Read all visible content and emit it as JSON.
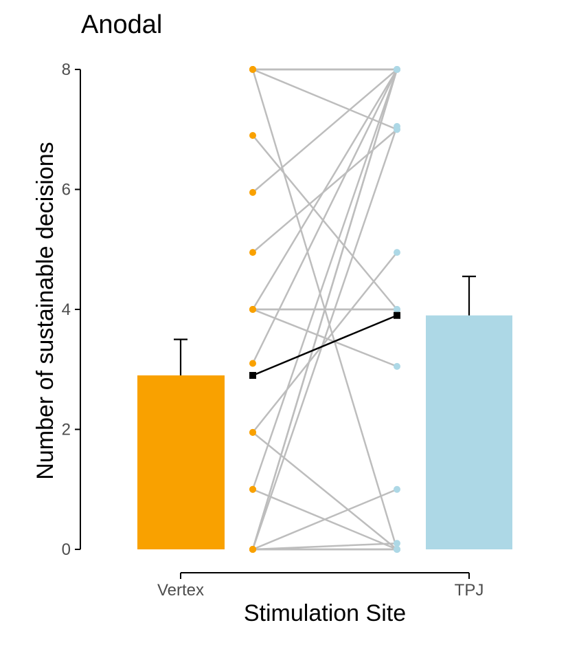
{
  "chart_data": {
    "type": "bar",
    "title": "Anodal",
    "xlabel": "Stimulation Site",
    "ylabel": "Number of sustainable decisions",
    "categories": [
      "Vertex",
      "TPJ"
    ],
    "values": [
      2.9,
      3.9
    ],
    "error_upper": [
      3.5,
      4.55
    ],
    "colors": {
      "Vertex": "#f9a100",
      "TPJ": "#add8e6"
    },
    "ylim": [
      0,
      8
    ],
    "yticks": [
      0,
      2,
      4,
      6,
      8
    ],
    "mean_line": {
      "from": 2.9,
      "to": 3.9,
      "color": "#000000"
    },
    "paired_line_color": "#bdbdbd",
    "subject_pairs": [
      [
        8,
        8
      ],
      [
        8,
        8
      ],
      [
        8,
        8
      ],
      [
        8,
        7
      ],
      [
        8,
        0
      ],
      [
        6.9,
        4
      ],
      [
        5.95,
        8
      ],
      [
        4.95,
        7
      ],
      [
        4,
        8
      ],
      [
        4,
        4
      ],
      [
        4,
        4
      ],
      [
        4,
        3.05
      ],
      [
        3.1,
        8
      ],
      [
        1.95,
        4.95
      ],
      [
        1.95,
        0
      ],
      [
        1,
        8
      ],
      [
        1,
        0
      ],
      [
        0,
        8
      ],
      [
        0,
        8
      ],
      [
        0,
        7.05
      ],
      [
        0,
        1
      ],
      [
        0,
        0
      ],
      [
        0,
        0
      ],
      [
        0,
        0.1
      ],
      [
        0,
        0
      ]
    ],
    "grid": false,
    "legend": "none"
  }
}
